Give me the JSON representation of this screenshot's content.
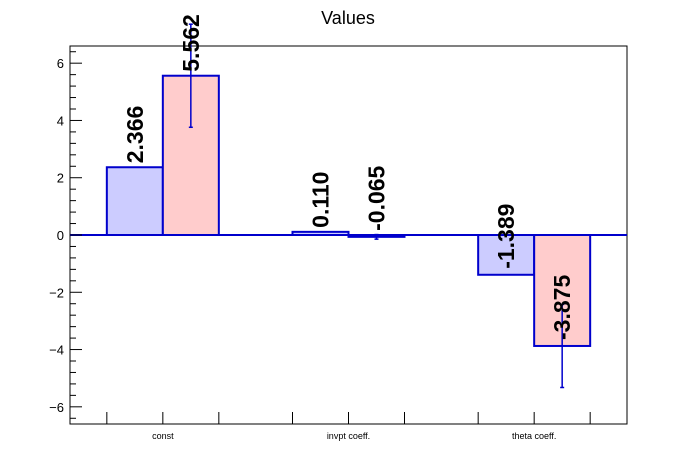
{
  "chart_data": {
    "type": "bar",
    "title": "Values",
    "xlabel": "",
    "ylabel": "",
    "categories": [
      "const",
      "invpt coeff.",
      "theta coeff."
    ],
    "series": [
      {
        "values": [
          2.366,
          0.11,
          -1.389
        ],
        "labels": [
          "2.366",
          "0.110",
          "-1.389"
        ],
        "errors": [
          0,
          0,
          0
        ],
        "color": "#ccccff"
      },
      {
        "values": [
          5.562,
          -0.065,
          -3.875
        ],
        "labels": [
          "5.562",
          "-0.065",
          "-3.875"
        ],
        "errors": [
          1.8,
          0.08,
          1.45
        ],
        "color": "#ffcccc"
      }
    ],
    "yticks": [
      -6,
      -4,
      -2,
      0,
      2,
      4,
      6
    ],
    "ylim": [
      -6.6,
      6.6
    ],
    "grid": false,
    "legend": "none",
    "colors": {
      "edge": "#0000cc",
      "axis": "#000000"
    }
  }
}
